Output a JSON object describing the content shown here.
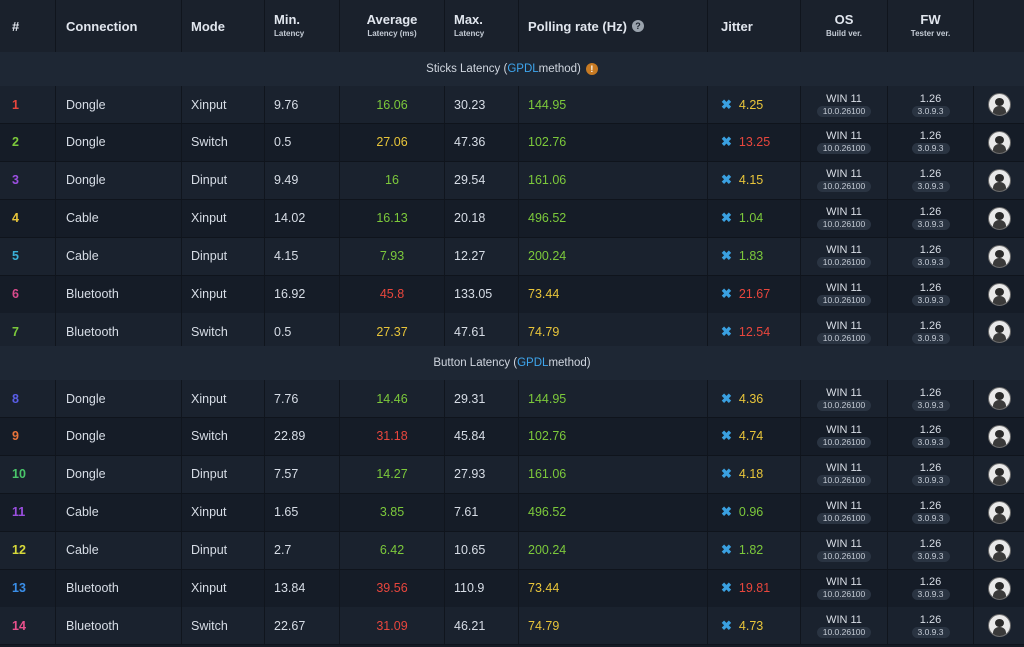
{
  "headers": {
    "num": "#",
    "connection": "Connection",
    "mode": "Mode",
    "min": "Min.",
    "min_sub": "Latency",
    "avg": "Average",
    "avg_sub": "Latency (ms)",
    "max": "Max.",
    "max_sub": "Latency",
    "polling": "Polling rate (Hz)",
    "polling_help_icon": "?",
    "jitter": "Jitter",
    "os": "OS",
    "os_sub": "Build ver.",
    "fw": "FW",
    "fw_sub": "Tester ver."
  },
  "sections": [
    {
      "prefix": "Sticks Latency (",
      "link": "GPDL",
      "suffix": " method)",
      "info_icon": "!"
    },
    {
      "prefix": "Button Latency (",
      "link": "GPDL",
      "suffix": " method)"
    }
  ],
  "colors": {
    "green": "#7cc93b",
    "yellow": "#e8c53a",
    "red": "#e8463d",
    "accent_blue": "#3ea6ee",
    "background": "#151b25"
  },
  "rows": [
    {
      "num": "1",
      "num_color": "#e8463d",
      "connection": "Dongle",
      "mode": "Xinput",
      "min": "9.76",
      "avg": "16.06",
      "avg_color": "green",
      "max": "30.23",
      "poll": "144.95",
      "poll_color": "green",
      "jitter_icon": "✖",
      "jitter": "4.25",
      "jitter_color": "yellow",
      "os": "WIN 11",
      "os_build": "10.0.26100",
      "fw": "1.26",
      "fw_tester": "3.0.9.3",
      "avatar_icon": "user-avatar-icon"
    },
    {
      "num": "2",
      "num_color": "#7cc93b",
      "connection": "Dongle",
      "mode": "Switch",
      "min": "0.5",
      "avg": "27.06",
      "avg_color": "yellow",
      "max": "47.36",
      "poll": "102.76",
      "poll_color": "green",
      "jitter_icon": "✖",
      "jitter": "13.25",
      "jitter_color": "red",
      "os": "WIN 11",
      "os_build": "10.0.26100",
      "fw": "1.26",
      "fw_tester": "3.0.9.3",
      "avatar_icon": "user-avatar-icon"
    },
    {
      "num": "3",
      "num_color": "#9b4fe0",
      "connection": "Dongle",
      "mode": "Dinput",
      "min": "9.49",
      "avg": "16",
      "avg_color": "green",
      "max": "29.54",
      "poll": "161.06",
      "poll_color": "green",
      "jitter_icon": "✖",
      "jitter": "4.15",
      "jitter_color": "yellow",
      "os": "WIN 11",
      "os_build": "10.0.26100",
      "fw": "1.26",
      "fw_tester": "3.0.9.3",
      "avatar_icon": "user-avatar-icon"
    },
    {
      "num": "4",
      "num_color": "#e8c53a",
      "connection": "Cable",
      "mode": "Xinput",
      "min": "14.02",
      "avg": "16.13",
      "avg_color": "green",
      "max": "20.18",
      "poll": "496.52",
      "poll_color": "green",
      "jitter_icon": "✖",
      "jitter": "1.04",
      "jitter_color": "green",
      "os": "WIN 11",
      "os_build": "10.0.26100",
      "fw": "1.26",
      "fw_tester": "3.0.9.3",
      "avatar_icon": "user-avatar-icon"
    },
    {
      "num": "5",
      "num_color": "#3ab0d8",
      "connection": "Cable",
      "mode": "Dinput",
      "min": "4.15",
      "avg": "7.93",
      "avg_color": "green",
      "max": "12.27",
      "poll": "200.24",
      "poll_color": "green",
      "jitter_icon": "✖",
      "jitter": "1.83",
      "jitter_color": "green",
      "os": "WIN 11",
      "os_build": "10.0.26100",
      "fw": "1.26",
      "fw_tester": "3.0.9.3",
      "avatar_icon": "user-avatar-icon"
    },
    {
      "num": "6",
      "num_color": "#d94a8c",
      "connection": "Bluetooth",
      "mode": "Xinput",
      "min": "16.92",
      "avg": "45.8",
      "avg_color": "red",
      "max": "133.05",
      "poll": "73.44",
      "poll_color": "yellow",
      "jitter_icon": "✖",
      "jitter": "21.67",
      "jitter_color": "red",
      "os": "WIN 11",
      "os_build": "10.0.26100",
      "fw": "1.26",
      "fw_tester": "3.0.9.3",
      "avatar_icon": "user-avatar-icon"
    },
    {
      "num": "7",
      "num_color": "#7cc93b",
      "connection": "Bluetooth",
      "mode": "Switch",
      "min": "0.5",
      "avg": "27.37",
      "avg_color": "yellow",
      "max": "47.61",
      "poll": "74.79",
      "poll_color": "yellow",
      "jitter_icon": "✖",
      "jitter": "12.54",
      "jitter_color": "red",
      "os": "WIN 11",
      "os_build": "10.0.26100",
      "fw": "1.26",
      "fw_tester": "3.0.9.3",
      "avatar_icon": "user-avatar-icon"
    },
    {
      "num": "8",
      "num_color": "#5a5ee8",
      "connection": "Dongle",
      "mode": "Xinput",
      "min": "7.76",
      "avg": "14.46",
      "avg_color": "green",
      "max": "29.31",
      "poll": "144.95",
      "poll_color": "green",
      "jitter_icon": "✖",
      "jitter": "4.36",
      "jitter_color": "yellow",
      "os": "WIN 11",
      "os_build": "10.0.26100",
      "fw": "1.26",
      "fw_tester": "3.0.9.3",
      "avatar_icon": "user-avatar-icon"
    },
    {
      "num": "9",
      "num_color": "#e8733a",
      "connection": "Dongle",
      "mode": "Switch",
      "min": "22.89",
      "avg": "31.18",
      "avg_color": "red",
      "max": "45.84",
      "poll": "102.76",
      "poll_color": "green",
      "jitter_icon": "✖",
      "jitter": "4.74",
      "jitter_color": "yellow",
      "os": "WIN 11",
      "os_build": "10.0.26100",
      "fw": "1.26",
      "fw_tester": "3.0.9.3",
      "avatar_icon": "user-avatar-icon"
    },
    {
      "num": "10",
      "num_color": "#4ac76a",
      "connection": "Dongle",
      "mode": "Dinput",
      "min": "7.57",
      "avg": "14.27",
      "avg_color": "green",
      "max": "27.93",
      "poll": "161.06",
      "poll_color": "green",
      "jitter_icon": "✖",
      "jitter": "4.18",
      "jitter_color": "yellow",
      "os": "WIN 11",
      "os_build": "10.0.26100",
      "fw": "1.26",
      "fw_tester": "3.0.9.3",
      "avatar_icon": "user-avatar-icon"
    },
    {
      "num": "11",
      "num_color": "#9b4fe0",
      "connection": "Cable",
      "mode": "Xinput",
      "min": "1.65",
      "avg": "3.85",
      "avg_color": "green",
      "max": "7.61",
      "poll": "496.52",
      "poll_color": "green",
      "jitter_icon": "✖",
      "jitter": "0.96",
      "jitter_color": "green",
      "os": "WIN 11",
      "os_build": "10.0.26100",
      "fw": "1.26",
      "fw_tester": "3.0.9.3",
      "avatar_icon": "user-avatar-icon"
    },
    {
      "num": "12",
      "num_color": "#d7d93a",
      "connection": "Cable",
      "mode": "Dinput",
      "min": "2.7",
      "avg": "6.42",
      "avg_color": "green",
      "max": "10.65",
      "poll": "200.24",
      "poll_color": "green",
      "jitter_icon": "✖",
      "jitter": "1.82",
      "jitter_color": "green",
      "os": "WIN 11",
      "os_build": "10.0.26100",
      "fw": "1.26",
      "fw_tester": "3.0.9.3",
      "avatar_icon": "user-avatar-icon"
    },
    {
      "num": "13",
      "num_color": "#3a8ee8",
      "connection": "Bluetooth",
      "mode": "Xinput",
      "min": "13.84",
      "avg": "39.56",
      "avg_color": "red",
      "max": "110.9",
      "poll": "73.44",
      "poll_color": "yellow",
      "jitter_icon": "✖",
      "jitter": "19.81",
      "jitter_color": "red",
      "os": "WIN 11",
      "os_build": "10.0.26100",
      "fw": "1.26",
      "fw_tester": "3.0.9.3",
      "avatar_icon": "user-avatar-icon"
    },
    {
      "num": "14",
      "num_color": "#e8508c",
      "connection": "Bluetooth",
      "mode": "Switch",
      "min": "22.67",
      "avg": "31.09",
      "avg_color": "red",
      "max": "46.21",
      "poll": "74.79",
      "poll_color": "yellow",
      "jitter_icon": "✖",
      "jitter": "4.73",
      "jitter_color": "yellow",
      "os": "WIN 11",
      "os_build": "10.0.26100",
      "fw": "1.26",
      "fw_tester": "3.0.9.3",
      "avatar_icon": "user-avatar-icon"
    }
  ]
}
